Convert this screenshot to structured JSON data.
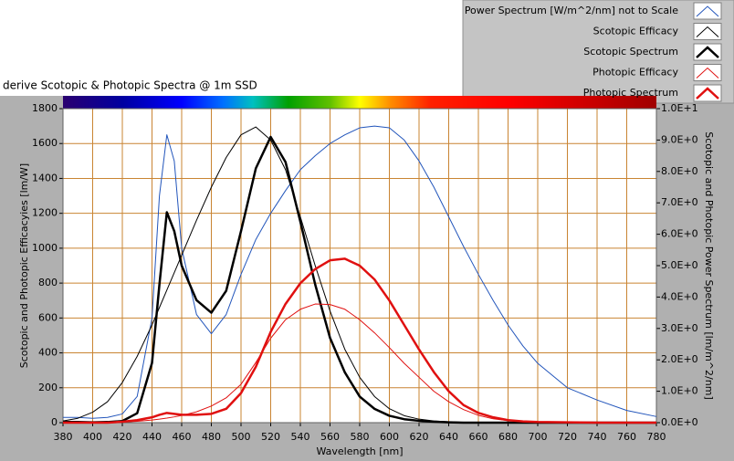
{
  "chart_data": {
    "type": "line",
    "title": "derive Scotopic & Photopic Spectra @ 1m SSD",
    "x_label": "Wavelength [nm]",
    "y_label": "Scotopic and Photopic Efficacyies [lm/W]",
    "y2_label": "Scotopic and Photopic Power Spectrum [lm/m^2/nm]",
    "xlim": [
      380,
      780
    ],
    "xticks": [
      380,
      400,
      420,
      440,
      460,
      480,
      500,
      520,
      540,
      560,
      580,
      600,
      620,
      640,
      660,
      680,
      700,
      720,
      740,
      760,
      780
    ],
    "ylim": [
      0,
      1800
    ],
    "yticks": [
      0,
      200,
      400,
      600,
      800,
      1000,
      1200,
      1400,
      1600,
      1800
    ],
    "y2lim": [
      0,
      10
    ],
    "y2ticks": [
      {
        "value": 0,
        "label": "0.0E+0"
      },
      {
        "value": 1,
        "label": "1.0E+0"
      },
      {
        "value": 2,
        "label": "2.0E+0"
      },
      {
        "value": 3,
        "label": "3.0E+0"
      },
      {
        "value": 4,
        "label": "4.0E+0"
      },
      {
        "value": 5,
        "label": "5.0E+0"
      },
      {
        "value": 6,
        "label": "6.0E+0"
      },
      {
        "value": 7,
        "label": "7.0E+0"
      },
      {
        "value": 8,
        "label": "8.0E+0"
      },
      {
        "value": 9,
        "label": "9.0E+0"
      },
      {
        "value": 10,
        "label": "1.0E+1"
      }
    ],
    "grid": true,
    "grid_color": "#c98432",
    "legend": "top-right",
    "x": [
      380,
      390,
      400,
      410,
      420,
      430,
      440,
      445,
      450,
      455,
      460,
      470,
      480,
      490,
      500,
      510,
      520,
      530,
      540,
      550,
      560,
      570,
      580,
      590,
      600,
      610,
      620,
      630,
      640,
      650,
      660,
      670,
      680,
      690,
      700,
      720,
      740,
      760,
      780
    ],
    "series": [
      {
        "name": "Power Spectrum [W/m^2/nm] not to Scale",
        "color": "#2255bb",
        "width": 1,
        "values": [
          30,
          30,
          25,
          30,
          50,
          150,
          600,
          1300,
          1650,
          1500,
          1000,
          620,
          510,
          620,
          850,
          1050,
          1200,
          1330,
          1450,
          1530,
          1600,
          1650,
          1690,
          1700,
          1690,
          1620,
          1500,
          1350,
          1180,
          1010,
          850,
          700,
          560,
          440,
          340,
          200,
          130,
          70,
          35
        ]
      },
      {
        "name": "Scotopic Efficacy",
        "color": "#000000",
        "width": 1,
        "values": [
          10,
          25,
          60,
          120,
          230,
          380,
          560,
          660,
          760,
          860,
          960,
          1160,
          1350,
          1520,
          1650,
          1695,
          1620,
          1450,
          1180,
          900,
          640,
          420,
          260,
          150,
          80,
          40,
          20,
          10,
          5,
          2,
          1,
          0,
          0,
          0,
          0,
          0,
          0,
          0,
          0
        ]
      },
      {
        "name": "Scotopic Spectrum",
        "color": "#000000",
        "width": 2.5,
        "axis": "y2",
        "values": [
          0.02,
          0.02,
          0.01,
          0.02,
          0.05,
          0.3,
          1.9,
          4.4,
          6.7,
          6.1,
          5.0,
          3.9,
          3.5,
          4.2,
          6.1,
          8.1,
          9.1,
          8.3,
          6.4,
          4.4,
          2.7,
          1.6,
          0.83,
          0.44,
          0.22,
          0.11,
          0.06,
          0.03,
          0.01,
          0,
          0,
          0,
          0,
          0,
          0,
          0,
          0,
          0,
          0
        ]
      },
      {
        "name": "Photopic Efficacy",
        "color": "#e01010",
        "width": 1,
        "values": [
          0,
          0,
          0,
          1,
          3,
          8,
          15,
          20,
          26,
          33,
          41,
          62,
          95,
          142,
          220,
          345,
          484,
          590,
          650,
          680,
          677,
          650,
          590,
          515,
          430,
          340,
          260,
          180,
          120,
          75,
          42,
          22,
          12,
          6,
          3,
          1,
          0,
          0,
          0
        ]
      },
      {
        "name": "Photopic Spectrum",
        "color": "#e01010",
        "width": 2.5,
        "axis": "y2",
        "values": [
          0,
          0,
          0,
          0,
          0.03,
          0.08,
          0.17,
          0.25,
          0.31,
          0.28,
          0.25,
          0.25,
          0.28,
          0.44,
          0.94,
          1.78,
          2.89,
          3.78,
          4.44,
          4.89,
          5.17,
          5.22,
          5.0,
          4.56,
          3.89,
          3.11,
          2.33,
          1.61,
          1.0,
          0.56,
          0.31,
          0.17,
          0.08,
          0.04,
          0.02,
          0.01,
          0,
          0,
          0
        ]
      }
    ]
  }
}
